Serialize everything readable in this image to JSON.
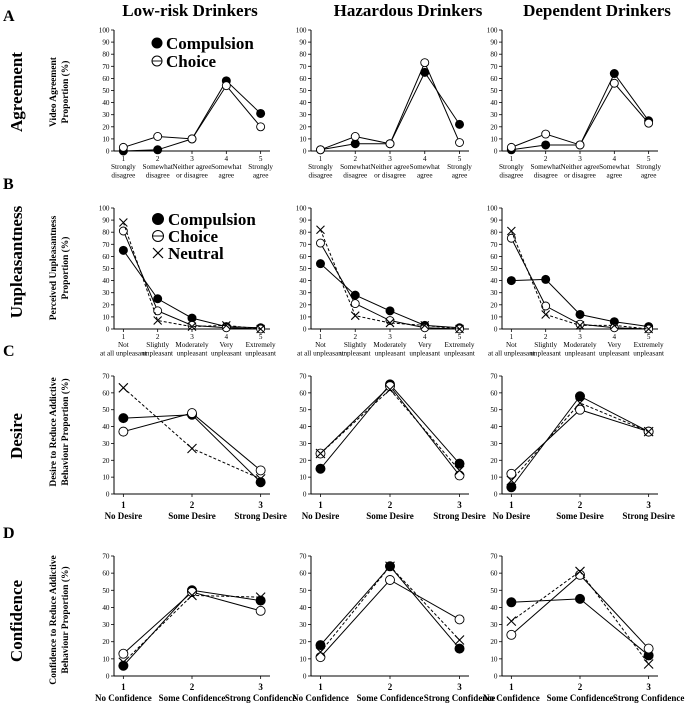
{
  "figure": {
    "column_titles": [
      "Low-risk Drinkers",
      "Hazardous Drinkers",
      "Dependent Drinkers"
    ],
    "panel_letters": [
      "A",
      "B",
      "C",
      "D"
    ],
    "row_labels": [
      "Agreement",
      "Unpleasantness",
      "Desire",
      "Confidence"
    ],
    "y_axis_labels": [
      [
        "Video Agreement",
        "Proportion (%)"
      ],
      [
        "Perceived Unpleasantness",
        "Proportion (%)"
      ],
      [
        "Desire to Reduce Addictive",
        "Behaviour Proportion (%)"
      ],
      [
        "Confidence to Reduce Addictive",
        "Behaviour Proportion (%)"
      ]
    ],
    "legend_a": [
      "Compulsion",
      "Choice"
    ],
    "legend_b": [
      "Compulsion",
      "Choice",
      "Neutral"
    ]
  },
  "chart_data": [
    {
      "type": "line",
      "row": "Agreement",
      "panel": "Low-risk Drinkers",
      "x": [
        1,
        2,
        3,
        4,
        5
      ],
      "categories": [
        "1 Strongly disagree",
        "2 Somewhat disagree",
        "3 Neither agree or disagree",
        "4 Somewhat agree",
        "5 Strongly agree"
      ],
      "ylim": [
        0,
        100
      ],
      "yticks": [
        0,
        10,
        20,
        30,
        40,
        50,
        60,
        70,
        80,
        90,
        100
      ],
      "series": [
        {
          "name": "Compulsion",
          "values": [
            0,
            1,
            10,
            58,
            31
          ]
        },
        {
          "name": "Choice",
          "values": [
            3,
            12,
            10,
            54,
            20
          ]
        }
      ]
    },
    {
      "type": "line",
      "row": "Agreement",
      "panel": "Hazardous Drinkers",
      "x": [
        1,
        2,
        3,
        4,
        5
      ],
      "categories": [
        "1 Strongly disagree",
        "2 Somewhat disagree",
        "3 Neither agree or disagree",
        "4 Somewhat agree",
        "5 Strongly agree"
      ],
      "ylim": [
        0,
        100
      ],
      "yticks": [
        0,
        10,
        20,
        30,
        40,
        50,
        60,
        70,
        80,
        90,
        100
      ],
      "series": [
        {
          "name": "Compulsion",
          "values": [
            1,
            6,
            6,
            65,
            22
          ]
        },
        {
          "name": "Choice",
          "values": [
            1,
            12,
            6,
            73,
            7
          ]
        }
      ]
    },
    {
      "type": "line",
      "row": "Agreement",
      "panel": "Dependent Drinkers",
      "x": [
        1,
        2,
        3,
        4,
        5
      ],
      "categories": [
        "1 Strongly disagree",
        "2 Somewhat disagree",
        "3 Neither agree or disagree",
        "4 Somewhat agree",
        "5 Strongly agree"
      ],
      "ylim": [
        0,
        100
      ],
      "yticks": [
        0,
        10,
        20,
        30,
        40,
        50,
        60,
        70,
        80,
        90,
        100
      ],
      "series": [
        {
          "name": "Compulsion",
          "values": [
            1,
            5,
            5,
            64,
            25
          ]
        },
        {
          "name": "Choice",
          "values": [
            3,
            14,
            5,
            56,
            23
          ]
        }
      ]
    },
    {
      "type": "line",
      "row": "Unpleasantness",
      "panel": "Low-risk Drinkers",
      "x": [
        1,
        2,
        3,
        4,
        5
      ],
      "categories": [
        "1 Not at all unpleasant",
        "2 Slightly unpleasant",
        "3 Moderately unpleasant",
        "4 Very unpleasant",
        "5 Extremely unpleasant"
      ],
      "ylim": [
        0,
        100
      ],
      "yticks": [
        0,
        10,
        20,
        30,
        40,
        50,
        60,
        70,
        80,
        90,
        100
      ],
      "series": [
        {
          "name": "Compulsion",
          "values": [
            65,
            25,
            9,
            2,
            1
          ]
        },
        {
          "name": "Choice",
          "values": [
            81,
            15,
            3,
            1,
            0
          ]
        },
        {
          "name": "Neutral",
          "values": [
            88,
            7,
            2,
            3,
            0
          ]
        }
      ]
    },
    {
      "type": "line",
      "row": "Unpleasantness",
      "panel": "Hazardous Drinkers",
      "x": [
        1,
        2,
        3,
        4,
        5
      ],
      "categories": [
        "1 Not at all unpleasant",
        "2 Slightly unpleasant",
        "3 Moderately unpleasant",
        "4 Very unpleasant",
        "5 Extremely unpleasant"
      ],
      "ylim": [
        0,
        100
      ],
      "yticks": [
        0,
        10,
        20,
        30,
        40,
        50,
        60,
        70,
        80,
        90,
        100
      ],
      "series": [
        {
          "name": "Compulsion",
          "values": [
            54,
            28,
            15,
            3,
            1
          ]
        },
        {
          "name": "Choice",
          "values": [
            71,
            21,
            7,
            1,
            0
          ]
        },
        {
          "name": "Neutral",
          "values": [
            82,
            11,
            5,
            3,
            0
          ]
        }
      ]
    },
    {
      "type": "line",
      "row": "Unpleasantness",
      "panel": "Dependent Drinkers",
      "x": [
        1,
        2,
        3,
        4,
        5
      ],
      "categories": [
        "1 Not at all unpleasant",
        "2 Slightly unpleasant",
        "3 Moderately unpleasant",
        "4 Very unpleasant",
        "5 Extremely unpleasant"
      ],
      "ylim": [
        0,
        100
      ],
      "yticks": [
        0,
        10,
        20,
        30,
        40,
        50,
        60,
        70,
        80,
        90,
        100
      ],
      "series": [
        {
          "name": "Compulsion",
          "values": [
            40,
            41,
            12,
            6,
            2
          ]
        },
        {
          "name": "Choice",
          "values": [
            75,
            19,
            4,
            1,
            0
          ]
        },
        {
          "name": "Neutral",
          "values": [
            81,
            12,
            3,
            3,
            0
          ]
        }
      ]
    },
    {
      "type": "line",
      "row": "Desire",
      "panel": "Low-risk Drinkers",
      "x": [
        1,
        2,
        3
      ],
      "categories": [
        "1 No Desire",
        "2 Some Desire",
        "3 Strong Desire"
      ],
      "ylim": [
        0,
        70
      ],
      "yticks": [
        0,
        10,
        20,
        30,
        40,
        50,
        60,
        70
      ],
      "series": [
        {
          "name": "Compulsion",
          "values": [
            45,
            47,
            7
          ]
        },
        {
          "name": "Choice",
          "values": [
            37,
            48,
            14
          ]
        },
        {
          "name": "Neutral",
          "values": [
            63,
            27,
            9
          ]
        }
      ]
    },
    {
      "type": "line",
      "row": "Desire",
      "panel": "Hazardous Drinkers",
      "x": [
        1,
        2,
        3
      ],
      "categories": [
        "1 No Desire",
        "2 Some Desire",
        "3 Strong Desire"
      ],
      "ylim": [
        0,
        70
      ],
      "yticks": [
        0,
        10,
        20,
        30,
        40,
        50,
        60,
        70
      ],
      "series": [
        {
          "name": "Compulsion",
          "values": [
            15,
            65,
            18
          ]
        },
        {
          "name": "Choice",
          "values": [
            24,
            64,
            11
          ]
        },
        {
          "name": "Neutral",
          "values": [
            24,
            62,
            14
          ]
        }
      ]
    },
    {
      "type": "line",
      "row": "Desire",
      "panel": "Dependent Drinkers",
      "x": [
        1,
        2,
        3
      ],
      "categories": [
        "1 No Desire",
        "2 Some Desire",
        "3 Strong Desire"
      ],
      "ylim": [
        0,
        70
      ],
      "yticks": [
        0,
        10,
        20,
        30,
        40,
        50,
        60,
        70
      ],
      "series": [
        {
          "name": "Compulsion",
          "values": [
            4,
            58,
            37
          ]
        },
        {
          "name": "Choice",
          "values": [
            12,
            50,
            37
          ]
        },
        {
          "name": "Neutral",
          "values": [
            8,
            54,
            37
          ]
        }
      ]
    },
    {
      "type": "line",
      "row": "Confidence",
      "panel": "Low-risk Drinkers",
      "x": [
        1,
        2,
        3
      ],
      "categories": [
        "1 No Confidence",
        "2 Some Confidence",
        "3 Strong Confidence"
      ],
      "ylim": [
        0,
        70
      ],
      "yticks": [
        0,
        10,
        20,
        30,
        40,
        50,
        60,
        70
      ],
      "series": [
        {
          "name": "Compulsion",
          "values": [
            6,
            50,
            44
          ]
        },
        {
          "name": "Choice",
          "values": [
            13,
            49,
            38
          ]
        },
        {
          "name": "Neutral",
          "values": [
            8,
            47,
            46
          ]
        }
      ]
    },
    {
      "type": "line",
      "row": "Confidence",
      "panel": "Hazardous Drinkers",
      "x": [
        1,
        2,
        3
      ],
      "categories": [
        "1 No Confidence",
        "2 Some Confidence",
        "3 Strong Confidence"
      ],
      "ylim": [
        0,
        70
      ],
      "yticks": [
        0,
        10,
        20,
        30,
        40,
        50,
        60,
        70
      ],
      "series": [
        {
          "name": "Compulsion",
          "values": [
            18,
            64,
            16
          ]
        },
        {
          "name": "Choice",
          "values": [
            11,
            56,
            33
          ]
        },
        {
          "name": "Neutral",
          "values": [
            14,
            64,
            21
          ]
        }
      ]
    },
    {
      "type": "line",
      "row": "Confidence",
      "panel": "Dependent Drinkers",
      "x": [
        1,
        2,
        3
      ],
      "categories": [
        "1 No Confidence",
        "2 Some Confidence",
        "3 Strong Confidence"
      ],
      "ylim": [
        0,
        70
      ],
      "yticks": [
        0,
        10,
        20,
        30,
        40,
        50,
        60,
        70
      ],
      "series": [
        {
          "name": "Compulsion",
          "values": [
            43,
            45,
            12
          ]
        },
        {
          "name": "Choice",
          "values": [
            24,
            59,
            16
          ]
        },
        {
          "name": "Neutral",
          "values": [
            32,
            61,
            7
          ]
        }
      ]
    }
  ]
}
